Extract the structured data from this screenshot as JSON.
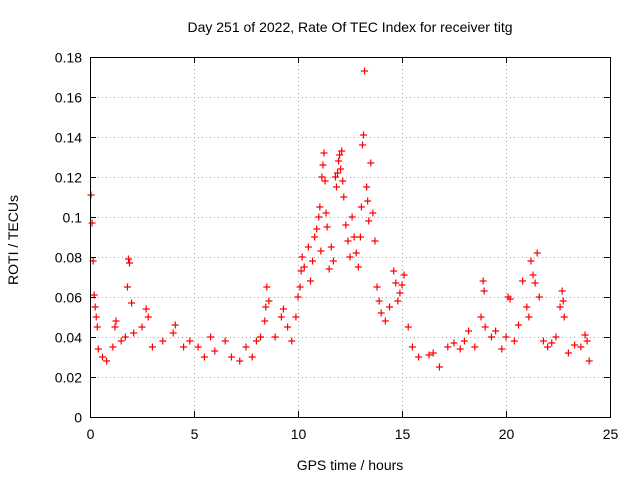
{
  "chart_data": {
    "type": "scatter",
    "title": "Day 251 of 2022, Rate Of TEC Index for receiver titg",
    "xlabel": "GPS time / hours",
    "ylabel": "ROTI / TECUs",
    "xlim": [
      0,
      25
    ],
    "ylim": [
      0,
      0.18
    ],
    "x_ticks": [
      0,
      5,
      10,
      15,
      20,
      25
    ],
    "y_ticks": [
      0,
      0.02,
      0.04,
      0.06,
      0.08,
      0.1,
      0.12,
      0.14,
      0.16,
      0.18
    ],
    "x_tick_labels": [
      "0",
      "5",
      "10",
      "15",
      "20",
      "25"
    ],
    "y_tick_labels": [
      "0",
      "0.02",
      "0.04",
      "0.06",
      "0.08",
      "0.1",
      "0.12",
      "0.14",
      "0.16",
      "0.18"
    ],
    "grid": true,
    "marker": "+",
    "marker_color": "#ff0000",
    "series": [
      {
        "name": "ROTI",
        "points": [
          [
            0.05,
            0.111
          ],
          [
            0.1,
            0.097
          ],
          [
            0.15,
            0.078
          ],
          [
            0.2,
            0.061
          ],
          [
            0.25,
            0.055
          ],
          [
            0.3,
            0.05
          ],
          [
            0.35,
            0.045
          ],
          [
            0.4,
            0.034
          ],
          [
            0.6,
            0.03
          ],
          [
            0.8,
            0.028
          ],
          [
            1.1,
            0.035
          ],
          [
            1.2,
            0.045
          ],
          [
            1.25,
            0.048
          ],
          [
            1.5,
            0.038
          ],
          [
            1.7,
            0.04
          ],
          [
            1.8,
            0.065
          ],
          [
            1.85,
            0.079
          ],
          [
            1.9,
            0.077
          ],
          [
            2.0,
            0.057
          ],
          [
            2.1,
            0.042
          ],
          [
            2.5,
            0.045
          ],
          [
            2.7,
            0.054
          ],
          [
            2.8,
            0.05
          ],
          [
            3.0,
            0.035
          ],
          [
            3.5,
            0.038
          ],
          [
            4.0,
            0.042
          ],
          [
            4.1,
            0.046
          ],
          [
            4.5,
            0.035
          ],
          [
            4.8,
            0.038
          ],
          [
            5.2,
            0.035
          ],
          [
            5.5,
            0.03
          ],
          [
            5.8,
            0.04
          ],
          [
            6.0,
            0.033
          ],
          [
            6.5,
            0.038
          ],
          [
            6.8,
            0.03
          ],
          [
            7.2,
            0.028
          ],
          [
            7.5,
            0.035
          ],
          [
            7.8,
            0.03
          ],
          [
            8.0,
            0.038
          ],
          [
            8.2,
            0.04
          ],
          [
            8.4,
            0.048
          ],
          [
            8.45,
            0.055
          ],
          [
            8.5,
            0.065
          ],
          [
            8.6,
            0.058
          ],
          [
            8.9,
            0.04
          ],
          [
            9.2,
            0.05
          ],
          [
            9.3,
            0.054
          ],
          [
            9.5,
            0.045
          ],
          [
            9.7,
            0.038
          ],
          [
            9.9,
            0.05
          ],
          [
            10.0,
            0.06
          ],
          [
            10.1,
            0.065
          ],
          [
            10.15,
            0.073
          ],
          [
            10.2,
            0.08
          ],
          [
            10.3,
            0.075
          ],
          [
            10.5,
            0.085
          ],
          [
            10.6,
            0.068
          ],
          [
            10.7,
            0.078
          ],
          [
            10.8,
            0.09
          ],
          [
            10.9,
            0.094
          ],
          [
            11.0,
            0.1
          ],
          [
            11.05,
            0.105
          ],
          [
            11.1,
            0.083
          ],
          [
            11.15,
            0.12
          ],
          [
            11.2,
            0.126
          ],
          [
            11.25,
            0.132
          ],
          [
            11.3,
            0.118
          ],
          [
            11.35,
            0.102
          ],
          [
            11.4,
            0.095
          ],
          [
            11.5,
            0.074
          ],
          [
            11.6,
            0.085
          ],
          [
            11.7,
            0.078
          ],
          [
            11.8,
            0.12
          ],
          [
            11.85,
            0.115
          ],
          [
            11.9,
            0.122
          ],
          [
            11.95,
            0.128
          ],
          [
            12.0,
            0.131
          ],
          [
            12.05,
            0.124
          ],
          [
            12.1,
            0.133
          ],
          [
            12.15,
            0.118
          ],
          [
            12.2,
            0.11
          ],
          [
            12.3,
            0.096
          ],
          [
            12.4,
            0.088
          ],
          [
            12.5,
            0.08
          ],
          [
            12.6,
            0.1
          ],
          [
            12.7,
            0.09
          ],
          [
            12.8,
            0.082
          ],
          [
            12.9,
            0.075
          ],
          [
            13.0,
            0.09
          ],
          [
            13.05,
            0.105
          ],
          [
            13.1,
            0.136
          ],
          [
            13.15,
            0.141
          ],
          [
            13.2,
            0.173
          ],
          [
            13.3,
            0.115
          ],
          [
            13.35,
            0.108
          ],
          [
            13.4,
            0.098
          ],
          [
            13.5,
            0.127
          ],
          [
            13.6,
            0.102
          ],
          [
            13.7,
            0.088
          ],
          [
            13.8,
            0.065
          ],
          [
            13.9,
            0.058
          ],
          [
            14.0,
            0.052
          ],
          [
            14.2,
            0.048
          ],
          [
            14.4,
            0.055
          ],
          [
            14.6,
            0.073
          ],
          [
            14.7,
            0.067
          ],
          [
            14.8,
            0.058
          ],
          [
            14.9,
            0.062
          ],
          [
            15.0,
            0.066
          ],
          [
            15.1,
            0.071
          ],
          [
            15.3,
            0.045
          ],
          [
            15.5,
            0.035
          ],
          [
            15.8,
            0.03
          ],
          [
            16.3,
            0.031
          ],
          [
            16.5,
            0.032
          ],
          [
            16.8,
            0.025
          ],
          [
            17.2,
            0.035
          ],
          [
            17.5,
            0.037
          ],
          [
            17.8,
            0.034
          ],
          [
            18.0,
            0.038
          ],
          [
            18.2,
            0.043
          ],
          [
            18.5,
            0.035
          ],
          [
            18.8,
            0.05
          ],
          [
            18.9,
            0.068
          ],
          [
            18.95,
            0.063
          ],
          [
            19.0,
            0.045
          ],
          [
            19.3,
            0.04
          ],
          [
            19.5,
            0.043
          ],
          [
            19.8,
            0.034
          ],
          [
            20.0,
            0.04
          ],
          [
            20.1,
            0.06
          ],
          [
            20.2,
            0.059
          ],
          [
            20.4,
            0.038
          ],
          [
            20.6,
            0.046
          ],
          [
            20.8,
            0.068
          ],
          [
            21.0,
            0.055
          ],
          [
            21.1,
            0.05
          ],
          [
            21.2,
            0.078
          ],
          [
            21.3,
            0.071
          ],
          [
            21.4,
            0.067
          ],
          [
            21.5,
            0.082
          ],
          [
            21.6,
            0.06
          ],
          [
            21.8,
            0.038
          ],
          [
            22.0,
            0.035
          ],
          [
            22.2,
            0.037
          ],
          [
            22.4,
            0.04
          ],
          [
            22.6,
            0.055
          ],
          [
            22.7,
            0.063
          ],
          [
            22.75,
            0.058
          ],
          [
            22.8,
            0.05
          ],
          [
            23.0,
            0.032
          ],
          [
            23.3,
            0.036
          ],
          [
            23.6,
            0.035
          ],
          [
            23.8,
            0.041
          ],
          [
            23.9,
            0.038
          ],
          [
            24.0,
            0.028
          ]
        ]
      }
    ]
  }
}
